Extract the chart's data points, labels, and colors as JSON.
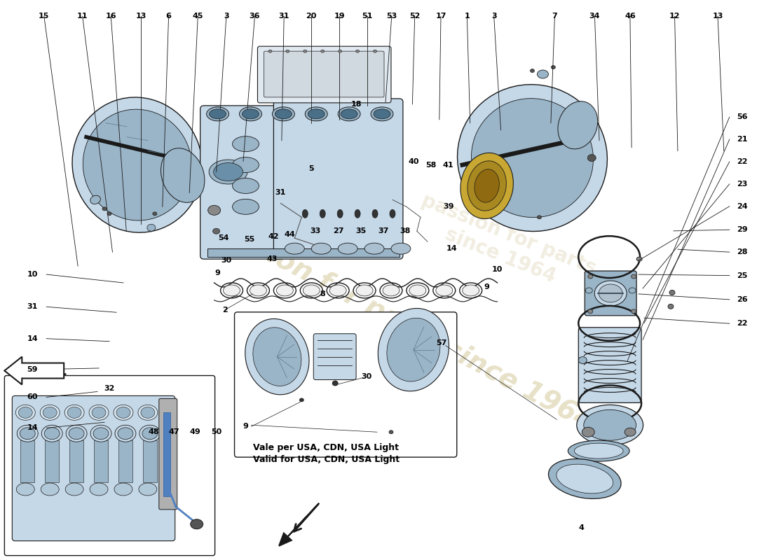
{
  "bg_color": "#ffffff",
  "lc": "#1a1a1a",
  "pc_light": "#c5d8e8",
  "pc_mid": "#9ab5c8",
  "pc_dark": "#6a8fa8",
  "pc_darker": "#4a6f88",
  "watermark_color": "#d4c89a",
  "wm_text": "passion for parts since 1964",
  "note_it": "Vale per USA, CDN, USA Light",
  "note_en": "Valid for USA, CDN, USA Light",
  "top_labels": [
    [
      "15",
      0.056
    ],
    [
      "11",
      0.106
    ],
    [
      "16",
      0.143
    ],
    [
      "13",
      0.182
    ],
    [
      "6",
      0.218
    ],
    [
      "45",
      0.256
    ],
    [
      "3",
      0.293
    ],
    [
      "36",
      0.33
    ],
    [
      "31",
      0.368
    ],
    [
      "20",
      0.403
    ],
    [
      "19",
      0.44
    ],
    [
      "51",
      0.476
    ],
    [
      "53",
      0.508
    ],
    [
      "52",
      0.538
    ],
    [
      "17",
      0.572
    ],
    [
      "1",
      0.606
    ],
    [
      "3",
      0.641
    ],
    [
      "7",
      0.72
    ],
    [
      "34",
      0.772
    ],
    [
      "46",
      0.818
    ],
    [
      "12",
      0.876
    ],
    [
      "13",
      0.932
    ]
  ],
  "left_labels": [
    [
      "14",
      0.765
    ],
    [
      "60",
      0.71
    ],
    [
      "59",
      0.66
    ],
    [
      "14",
      0.605
    ],
    [
      "31",
      0.548
    ],
    [
      "10",
      0.49
    ]
  ],
  "right_labels_far": [
    [
      "22",
      0.578
    ],
    [
      "26",
      0.535
    ],
    [
      "25",
      0.492
    ],
    [
      "28",
      0.45
    ],
    [
      "29",
      0.41
    ],
    [
      "24",
      0.368
    ],
    [
      "23",
      0.328
    ],
    [
      "22",
      0.288
    ],
    [
      "21",
      0.248
    ],
    [
      "56",
      0.208
    ]
  ]
}
